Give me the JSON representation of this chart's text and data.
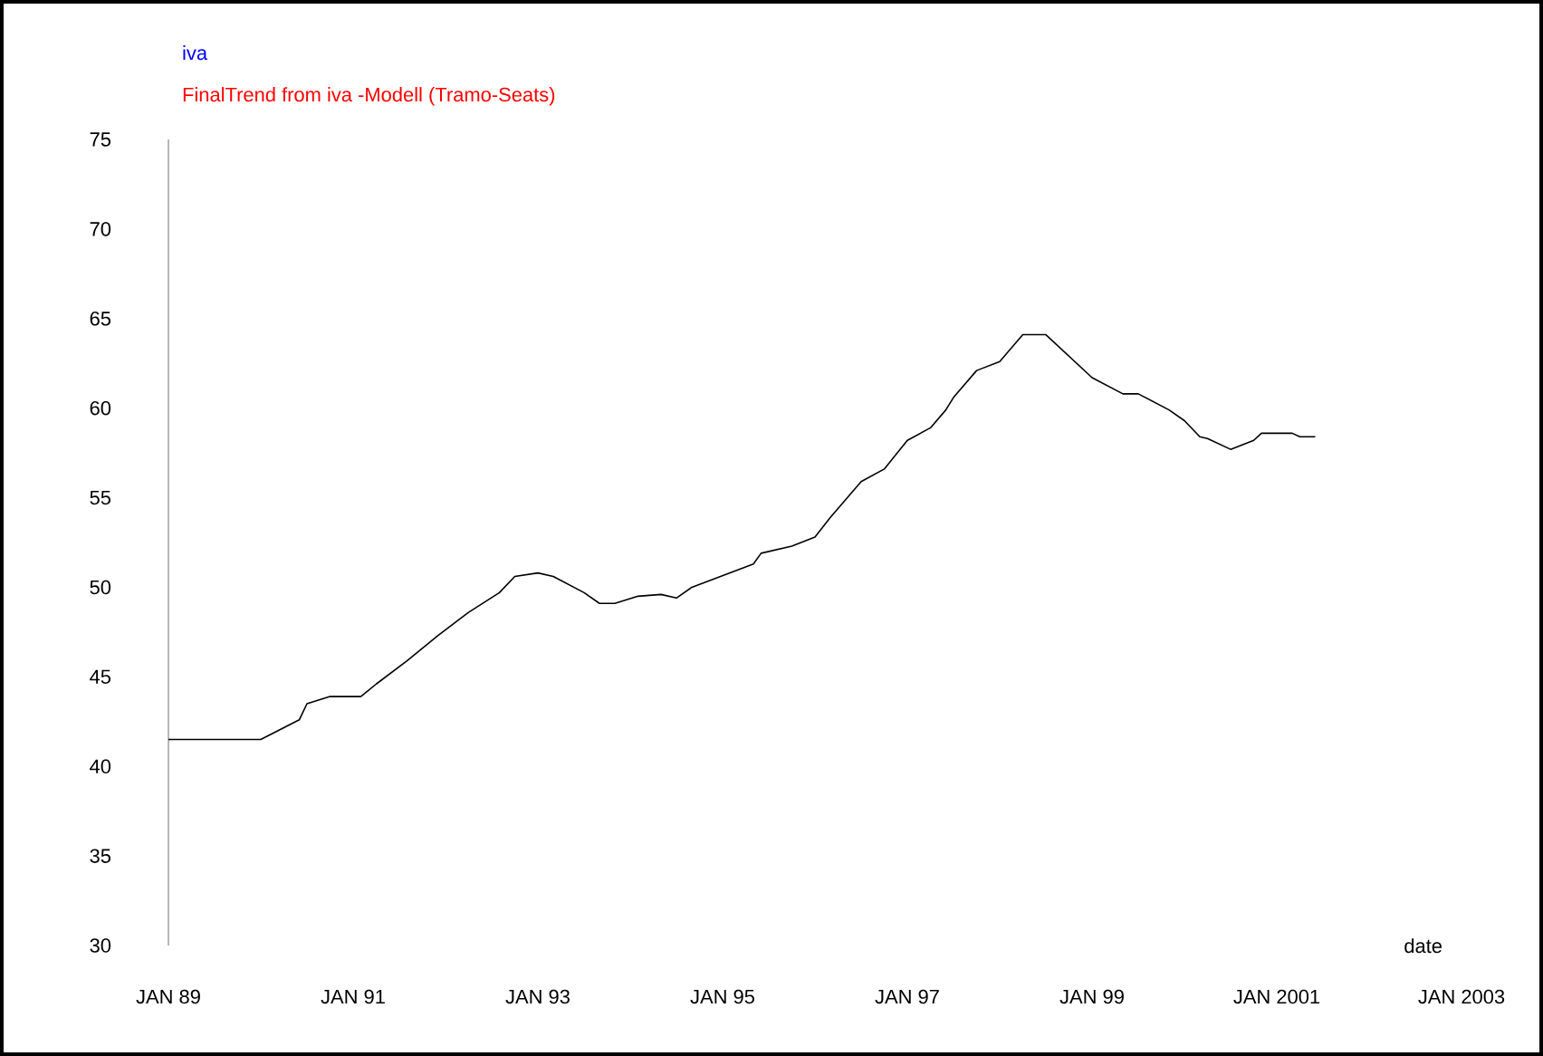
{
  "chart_data": {
    "type": "line",
    "title": "iva",
    "subtitle": "FinalTrend from iva -Modell (Tramo-Seats)",
    "xlabel": "date",
    "x": [
      "1989-01",
      "1990-01",
      "1990-06",
      "1990-07",
      "1990-10",
      "1991-02",
      "1991-04",
      "1991-08",
      "1991-12",
      "1992-04",
      "1992-08",
      "1992-10",
      "1993-01",
      "1993-03",
      "1993-07",
      "1993-09",
      "1993-11",
      "1994-02",
      "1994-05",
      "1994-07",
      "1994-09",
      "1995-05",
      "1995-06",
      "1995-10",
      "1996-01",
      "1996-03",
      "1996-07",
      "1996-10",
      "1997-01",
      "1997-04",
      "1997-06",
      "1997-07",
      "1997-10",
      "1998-01",
      "1998-04",
      "1998-07",
      "1999-01",
      "1999-05",
      "1999-07",
      "1999-11",
      "2000-01",
      "2000-03",
      "2000-04",
      "2000-07",
      "2000-10",
      "2000-11",
      "2001-03",
      "2001-04",
      "2001-06"
    ],
    "series": [
      {
        "color": "#000000",
        "values": [
          41.5,
          41.5,
          42.6,
          43.5,
          43.9,
          43.9,
          44.6,
          45.9,
          47.3,
          48.6,
          49.7,
          50.6,
          50.8,
          50.6,
          49.7,
          49.1,
          49.1,
          49.5,
          49.6,
          49.4,
          50.0,
          51.3,
          51.9,
          52.3,
          52.8,
          53.9,
          55.9,
          56.6,
          58.2,
          58.9,
          59.9,
          60.6,
          62.1,
          62.6,
          64.1,
          64.1,
          61.7,
          60.8,
          60.8,
          59.9,
          59.3,
          58.4,
          58.3,
          57.7,
          58.2,
          58.6,
          58.6,
          58.4,
          58.4
        ]
      }
    ],
    "xlim": [
      "1989-01",
      "2003-01"
    ],
    "ylim": [
      30,
      75
    ],
    "xticks": [
      {
        "value": "1989-01",
        "label": "JAN 89"
      },
      {
        "value": "1991-01",
        "label": "JAN 91"
      },
      {
        "value": "1993-01",
        "label": "JAN 93"
      },
      {
        "value": "1995-01",
        "label": "JAN 95"
      },
      {
        "value": "1997-01",
        "label": "JAN 97"
      },
      {
        "value": "1999-01",
        "label": "JAN 99"
      },
      {
        "value": "2001-01",
        "label": "JAN 2001"
      },
      {
        "value": "2003-01",
        "label": "JAN 2003"
      }
    ],
    "yticks": [
      30,
      35,
      40,
      45,
      50,
      55,
      60,
      65,
      70,
      75
    ],
    "grid": false,
    "legend": false,
    "marker": "none",
    "line_style": "solid"
  }
}
